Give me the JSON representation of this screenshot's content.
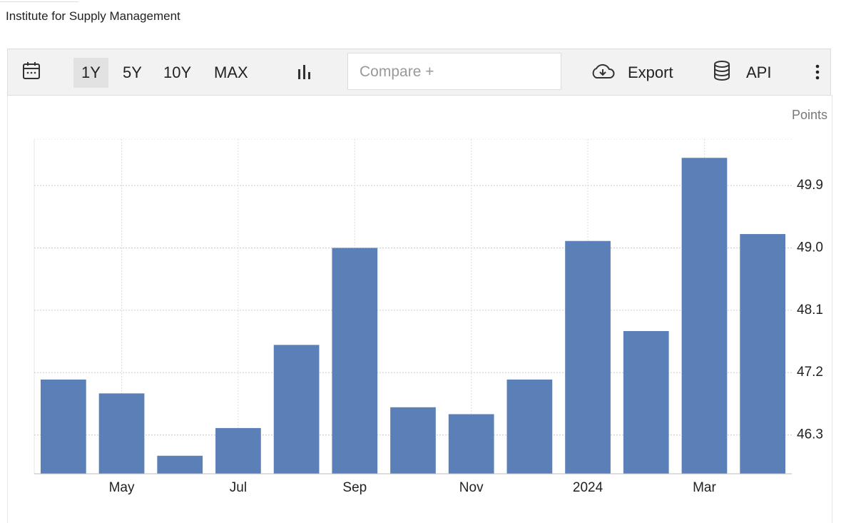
{
  "header": {
    "title": "Institute for Supply Management"
  },
  "toolbar": {
    "ranges": [
      "1Y",
      "5Y",
      "10Y",
      "MAX"
    ],
    "compare": "Compare +",
    "export": "Export",
    "api": "API"
  },
  "chart_data": {
    "type": "bar",
    "unit": "Points",
    "categories": [
      null,
      "May",
      null,
      "Jul",
      null,
      "Sep",
      null,
      "Nov",
      null,
      "2024",
      null,
      "Mar",
      null
    ],
    "values": [
      47.1,
      46.9,
      46.0,
      46.4,
      47.6,
      49.0,
      46.7,
      46.6,
      47.1,
      49.1,
      47.8,
      50.3,
      49.2
    ],
    "color": "#5b80b8",
    "ylim": [
      45.74,
      50.57
    ],
    "yticks": [
      46.3,
      47.2,
      48.1,
      {
        "value": 49,
        "label": "49.0"
      },
      49.9
    ],
    "grid": true
  }
}
